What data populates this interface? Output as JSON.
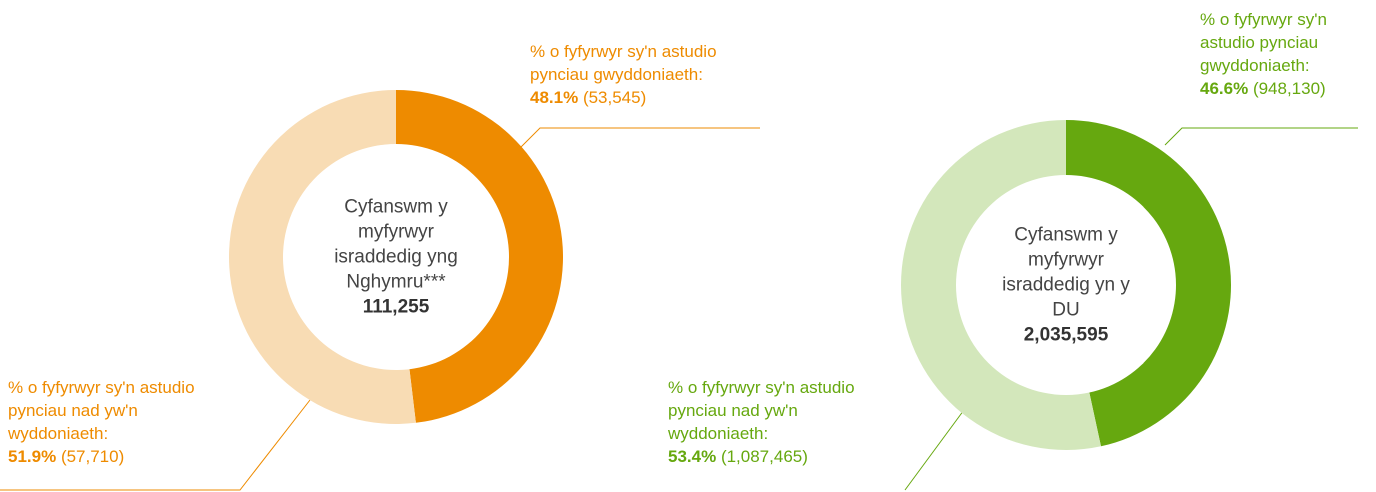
{
  "chart_data": [
    {
      "type": "donut",
      "center_label": "Cyfanswm y myfyrwyr israddedig yng Nghymru***",
      "total": 111255,
      "total_label": "111,255",
      "categories": [
        "% o fyfyrwyr sy'n astudio pynciau gwyddoniaeth:",
        "% o fyfyrwyr sy'n astudio pynciau nad yw'n wyddoniaeth:"
      ],
      "values": [
        48.1,
        51.9
      ],
      "value_labels": [
        "48.1%",
        "51.9%"
      ],
      "counts": [
        53545,
        57710
      ],
      "count_labels": [
        "(53,545)",
        "(57,710)"
      ],
      "colors": [
        "#ee8b00",
        "#f8dcb4"
      ],
      "label_color": "#ee8b00"
    },
    {
      "type": "donut",
      "center_label": "Cyfanswm y myfyrwyr israddedig yn y DU",
      "total": 2035595,
      "total_label": "2,035,595",
      "categories": [
        "% o fyfyrwyr sy'n astudio pynciau gwyddoniaeth:",
        "% o fyfyrwyr sy'n astudio pynciau nad yw'n wyddoniaeth:"
      ],
      "values": [
        46.6,
        53.4
      ],
      "value_labels": [
        "46.6%",
        "53.4%"
      ],
      "counts": [
        948130,
        1087465
      ],
      "count_labels": [
        "(948,130)",
        "(1,087,465)"
      ],
      "colors": [
        "#66a80f",
        "#d3e7bb"
      ],
      "label_color": "#66a80f"
    }
  ]
}
